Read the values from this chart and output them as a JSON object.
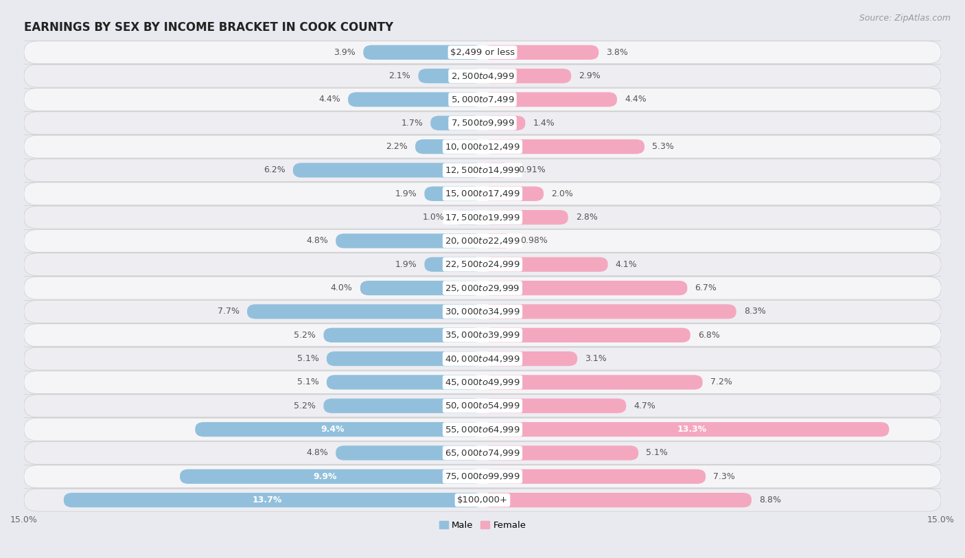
{
  "title": "EARNINGS BY SEX BY INCOME BRACKET IN COOK COUNTY",
  "source": "Source: ZipAtlas.com",
  "categories": [
    "$2,499 or less",
    "$2,500 to $4,999",
    "$5,000 to $7,499",
    "$7,500 to $9,999",
    "$10,000 to $12,499",
    "$12,500 to $14,999",
    "$15,000 to $17,499",
    "$17,500 to $19,999",
    "$20,000 to $22,499",
    "$22,500 to $24,999",
    "$25,000 to $29,999",
    "$30,000 to $34,999",
    "$35,000 to $39,999",
    "$40,000 to $44,999",
    "$45,000 to $49,999",
    "$50,000 to $54,999",
    "$55,000 to $64,999",
    "$65,000 to $74,999",
    "$75,000 to $99,999",
    "$100,000+"
  ],
  "male": [
    3.9,
    2.1,
    4.4,
    1.7,
    2.2,
    6.2,
    1.9,
    1.0,
    4.8,
    1.9,
    4.0,
    7.7,
    5.2,
    5.1,
    5.1,
    5.2,
    9.4,
    4.8,
    9.9,
    13.7
  ],
  "female": [
    3.8,
    2.9,
    4.4,
    1.4,
    5.3,
    0.91,
    2.0,
    2.8,
    0.98,
    4.1,
    6.7,
    8.3,
    6.8,
    3.1,
    7.2,
    4.7,
    13.3,
    5.1,
    7.3,
    8.8
  ],
  "male_color": "#92c0dc",
  "female_color": "#f4a8bf",
  "male_label": "Male",
  "female_label": "Female",
  "xlim": 15.0,
  "bg_color": "#e8eaf0",
  "row_bg_color": "#ededf2",
  "row_bg_color_alt": "#f5f5f8",
  "label_box_color": "#ffffff",
  "title_fontsize": 12,
  "label_fontsize": 9.5,
  "value_fontsize": 9,
  "tick_fontsize": 9,
  "source_fontsize": 9
}
